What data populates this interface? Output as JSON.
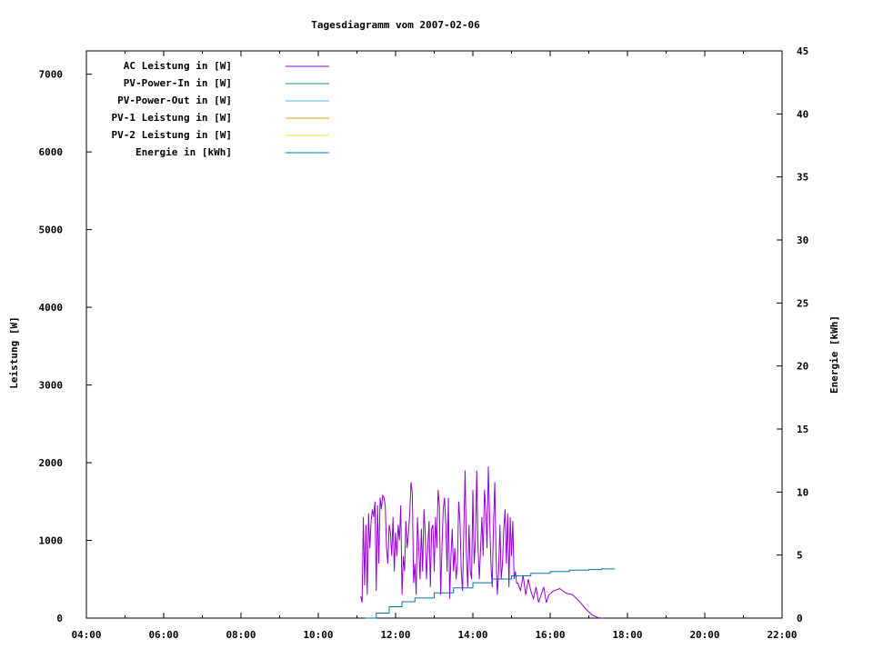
{
  "chart_data": {
    "type": "line",
    "title": "Tagesdiagramm vom 2007-02-06",
    "xlabel": "",
    "ylabel": "Leistung [W]",
    "y2label": "Energie [kWh]",
    "xlim": [
      "04:00",
      "22:00"
    ],
    "ylim": [
      0,
      7300
    ],
    "y2lim": [
      0,
      45
    ],
    "x_ticks": [
      "04:00",
      "06:00",
      "08:00",
      "10:00",
      "12:00",
      "14:00",
      "16:00",
      "18:00",
      "20:00",
      "22:00"
    ],
    "y_ticks": [
      0,
      1000,
      2000,
      3000,
      4000,
      5000,
      6000,
      7000
    ],
    "y2_ticks": [
      0,
      5,
      10,
      15,
      20,
      25,
      30,
      35,
      40,
      45
    ],
    "grid": false,
    "legend_position": "top-left",
    "legend": [
      {
        "label": "AC Leistung in [W]",
        "color": "#9400d3"
      },
      {
        "label": "PV-Power-In in [W]",
        "color": "#009e73"
      },
      {
        "label": "PV-Power-Out in [W]",
        "color": "#56b4e9"
      },
      {
        "label": "PV-1 Leistung in [W]",
        "color": "#e69f00"
      },
      {
        "label": "PV-2 Leistung in [W]",
        "color": "#f0e442"
      },
      {
        "label": "Energie in [kWh]",
        "color": "#0072b2"
      }
    ],
    "series": [
      {
        "name": "AC Leistung in [W]",
        "axis": "left",
        "color": "#9400d3",
        "points": [
          [
            "11:06",
            280
          ],
          [
            "11:08",
            200
          ],
          [
            "11:10",
            1300
          ],
          [
            "11:12",
            420
          ],
          [
            "11:14",
            1200
          ],
          [
            "11:16",
            300
          ],
          [
            "11:18",
            1350
          ],
          [
            "11:20",
            900
          ],
          [
            "11:22",
            1250
          ],
          [
            "11:24",
            1400
          ],
          [
            "11:26",
            1300
          ],
          [
            "11:28",
            1500
          ],
          [
            "11:30",
            350
          ],
          [
            "11:32",
            1450
          ],
          [
            "11:34",
            700
          ],
          [
            "11:36",
            1550
          ],
          [
            "11:38",
            1400
          ],
          [
            "11:40",
            1580
          ],
          [
            "11:42",
            1550
          ],
          [
            "11:44",
            1450
          ],
          [
            "11:46",
            900
          ],
          [
            "11:48",
            700
          ],
          [
            "11:50",
            1200
          ],
          [
            "11:52",
            1100
          ],
          [
            "11:54",
            800
          ],
          [
            "11:56",
            1300
          ],
          [
            "11:58",
            600
          ],
          [
            "12:00",
            1100
          ],
          [
            "12:02",
            800
          ],
          [
            "12:04",
            1200
          ],
          [
            "12:06",
            1000
          ],
          [
            "12:08",
            1450
          ],
          [
            "12:10",
            300
          ],
          [
            "12:12",
            800
          ],
          [
            "12:14",
            600
          ],
          [
            "12:16",
            1250
          ],
          [
            "12:18",
            900
          ],
          [
            "12:20",
            1100
          ],
          [
            "12:22",
            1350
          ],
          [
            "12:24",
            1750
          ],
          [
            "12:26",
            1600
          ],
          [
            "12:28",
            450
          ],
          [
            "12:30",
            700
          ],
          [
            "12:32",
            300
          ],
          [
            "12:34",
            1300
          ],
          [
            "12:36",
            900
          ],
          [
            "12:38",
            500
          ],
          [
            "12:40",
            1150
          ],
          [
            "12:42",
            600
          ],
          [
            "12:44",
            1400
          ],
          [
            "12:46",
            1100
          ],
          [
            "12:48",
            500
          ],
          [
            "12:50",
            900
          ],
          [
            "12:52",
            1250
          ],
          [
            "12:54",
            400
          ],
          [
            "12:56",
            1150
          ],
          [
            "12:58",
            1200
          ],
          [
            "13:00",
            600
          ],
          [
            "13:02",
            1300
          ],
          [
            "13:04",
            900
          ],
          [
            "13:06",
            1650
          ],
          [
            "13:08",
            1450
          ],
          [
            "13:10",
            300
          ],
          [
            "13:12",
            900
          ],
          [
            "13:14",
            1400
          ],
          [
            "13:16",
            1550
          ],
          [
            "13:18",
            1200
          ],
          [
            "13:20",
            600
          ],
          [
            "13:22",
            1550
          ],
          [
            "13:24",
            250
          ],
          [
            "13:26",
            800
          ],
          [
            "13:28",
            1150
          ],
          [
            "13:30",
            600
          ],
          [
            "13:32",
            900
          ],
          [
            "13:34",
            500
          ],
          [
            "13:36",
            700
          ],
          [
            "13:38",
            1500
          ],
          [
            "13:40",
            1250
          ],
          [
            "13:42",
            600
          ],
          [
            "13:44",
            350
          ],
          [
            "13:46",
            1150
          ],
          [
            "13:48",
            1900
          ],
          [
            "13:50",
            800
          ],
          [
            "13:52",
            400
          ],
          [
            "13:54",
            1200
          ],
          [
            "13:56",
            600
          ],
          [
            "13:58",
            500
          ],
          [
            "14:00",
            1650
          ],
          [
            "14:02",
            700
          ],
          [
            "14:04",
            1000
          ],
          [
            "14:06",
            1900
          ],
          [
            "14:08",
            900
          ],
          [
            "14:10",
            500
          ],
          [
            "14:12",
            900
          ],
          [
            "14:14",
            1300
          ],
          [
            "14:16",
            800
          ],
          [
            "14:18",
            1650
          ],
          [
            "14:20",
            1400
          ],
          [
            "14:22",
            900
          ],
          [
            "14:24",
            1950
          ],
          [
            "14:26",
            1300
          ],
          [
            "14:28",
            700
          ],
          [
            "14:30",
            400
          ],
          [
            "14:32",
            1200
          ],
          [
            "14:34",
            1750
          ],
          [
            "14:36",
            800
          ],
          [
            "14:38",
            300
          ],
          [
            "14:40",
            600
          ],
          [
            "14:42",
            1200
          ],
          [
            "14:44",
            500
          ],
          [
            "14:46",
            700
          ],
          [
            "14:48",
            1150
          ],
          [
            "14:50",
            1400
          ],
          [
            "14:52",
            700
          ],
          [
            "14:54",
            1350
          ],
          [
            "14:56",
            400
          ],
          [
            "14:58",
            1300
          ],
          [
            "15:00",
            800
          ],
          [
            "15:02",
            1250
          ],
          [
            "15:04",
            500
          ],
          [
            "15:06",
            600
          ],
          [
            "15:08",
            450
          ],
          [
            "15:10",
            450
          ],
          [
            "15:14",
            350
          ],
          [
            "15:18",
            550
          ],
          [
            "15:22",
            300
          ],
          [
            "15:26",
            500
          ],
          [
            "15:30",
            350
          ],
          [
            "15:34",
            250
          ],
          [
            "15:38",
            400
          ],
          [
            "15:42",
            200
          ],
          [
            "15:46",
            300
          ],
          [
            "15:50",
            400
          ],
          [
            "15:54",
            200
          ],
          [
            "15:58",
            300
          ],
          [
            "16:05",
            350
          ],
          [
            "16:15",
            380
          ],
          [
            "16:25",
            320
          ],
          [
            "16:35",
            300
          ],
          [
            "16:45",
            220
          ],
          [
            "16:55",
            120
          ],
          [
            "17:05",
            40
          ],
          [
            "17:15",
            5
          ],
          [
            "17:22",
            0
          ]
        ]
      },
      {
        "name": "Energie in [kWh]",
        "axis": "right",
        "color": "#0072b2",
        "points": [
          [
            "11:13",
            0.0
          ],
          [
            "11:30",
            0.4
          ],
          [
            "11:50",
            0.9
          ],
          [
            "12:10",
            1.3
          ],
          [
            "12:30",
            1.6
          ],
          [
            "13:00",
            2.0
          ],
          [
            "13:30",
            2.4
          ],
          [
            "14:00",
            2.8
          ],
          [
            "14:30",
            3.1
          ],
          [
            "15:00",
            3.35
          ],
          [
            "15:30",
            3.55
          ],
          [
            "16:00",
            3.7
          ],
          [
            "16:30",
            3.8
          ],
          [
            "17:00",
            3.85
          ],
          [
            "17:20",
            3.9
          ],
          [
            "17:40",
            3.9
          ]
        ]
      }
    ]
  }
}
